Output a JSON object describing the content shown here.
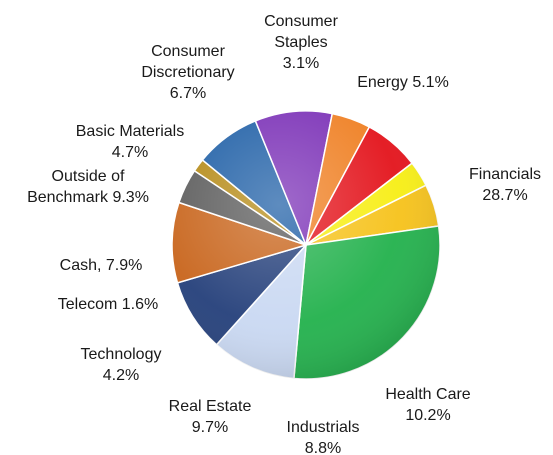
{
  "chart_data": {
    "type": "pie",
    "title": "",
    "legend": "none",
    "slices": [
      {
        "label_lines": [
          "Energy 5.1%"
        ],
        "value": 5.1,
        "color": "#f6c21a"
      },
      {
        "label_lines": [
          "Financials",
          "28.7%"
        ],
        "value": 28.7,
        "color": "#22b14c"
      },
      {
        "label_lines": [
          "Health Care",
          "10.2%"
        ],
        "value": 10.2,
        "color": "#c9d8f2"
      },
      {
        "label_lines": [
          "Industrials",
          "8.8%"
        ],
        "value": 8.8,
        "color": "#243f7a"
      },
      {
        "label_lines": [
          "Real Estate",
          "9.7%"
        ],
        "value": 9.7,
        "color": "#c8641b"
      },
      {
        "label_lines": [
          "Technology",
          "4.2%"
        ],
        "value": 4.2,
        "color": "#5b5b5b"
      },
      {
        "label_lines": [
          "Telecom 1.6%"
        ],
        "value": 1.6,
        "color": "#b58a16"
      },
      {
        "label_lines": [
          "Cash, 7.9%"
        ],
        "value": 7.9,
        "color": "#1f5fa6"
      },
      {
        "label_lines": [
          "Outside of",
          "Benchmark 9.3%"
        ],
        "value": 9.3,
        "color": "#7a2fb6"
      },
      {
        "label_lines": [
          "Basic Materials",
          "4.7%"
        ],
        "value": 4.7,
        "color": "#ef7f22"
      },
      {
        "label_lines": [
          "Consumer",
          "Discretionary",
          "6.7%"
        ],
        "value": 6.7,
        "color": "#e3131b"
      },
      {
        "label_lines": [
          "Consumer",
          "Staples",
          "3.1%"
        ],
        "value": 3.1,
        "color": "#f7ee14"
      }
    ]
  }
}
